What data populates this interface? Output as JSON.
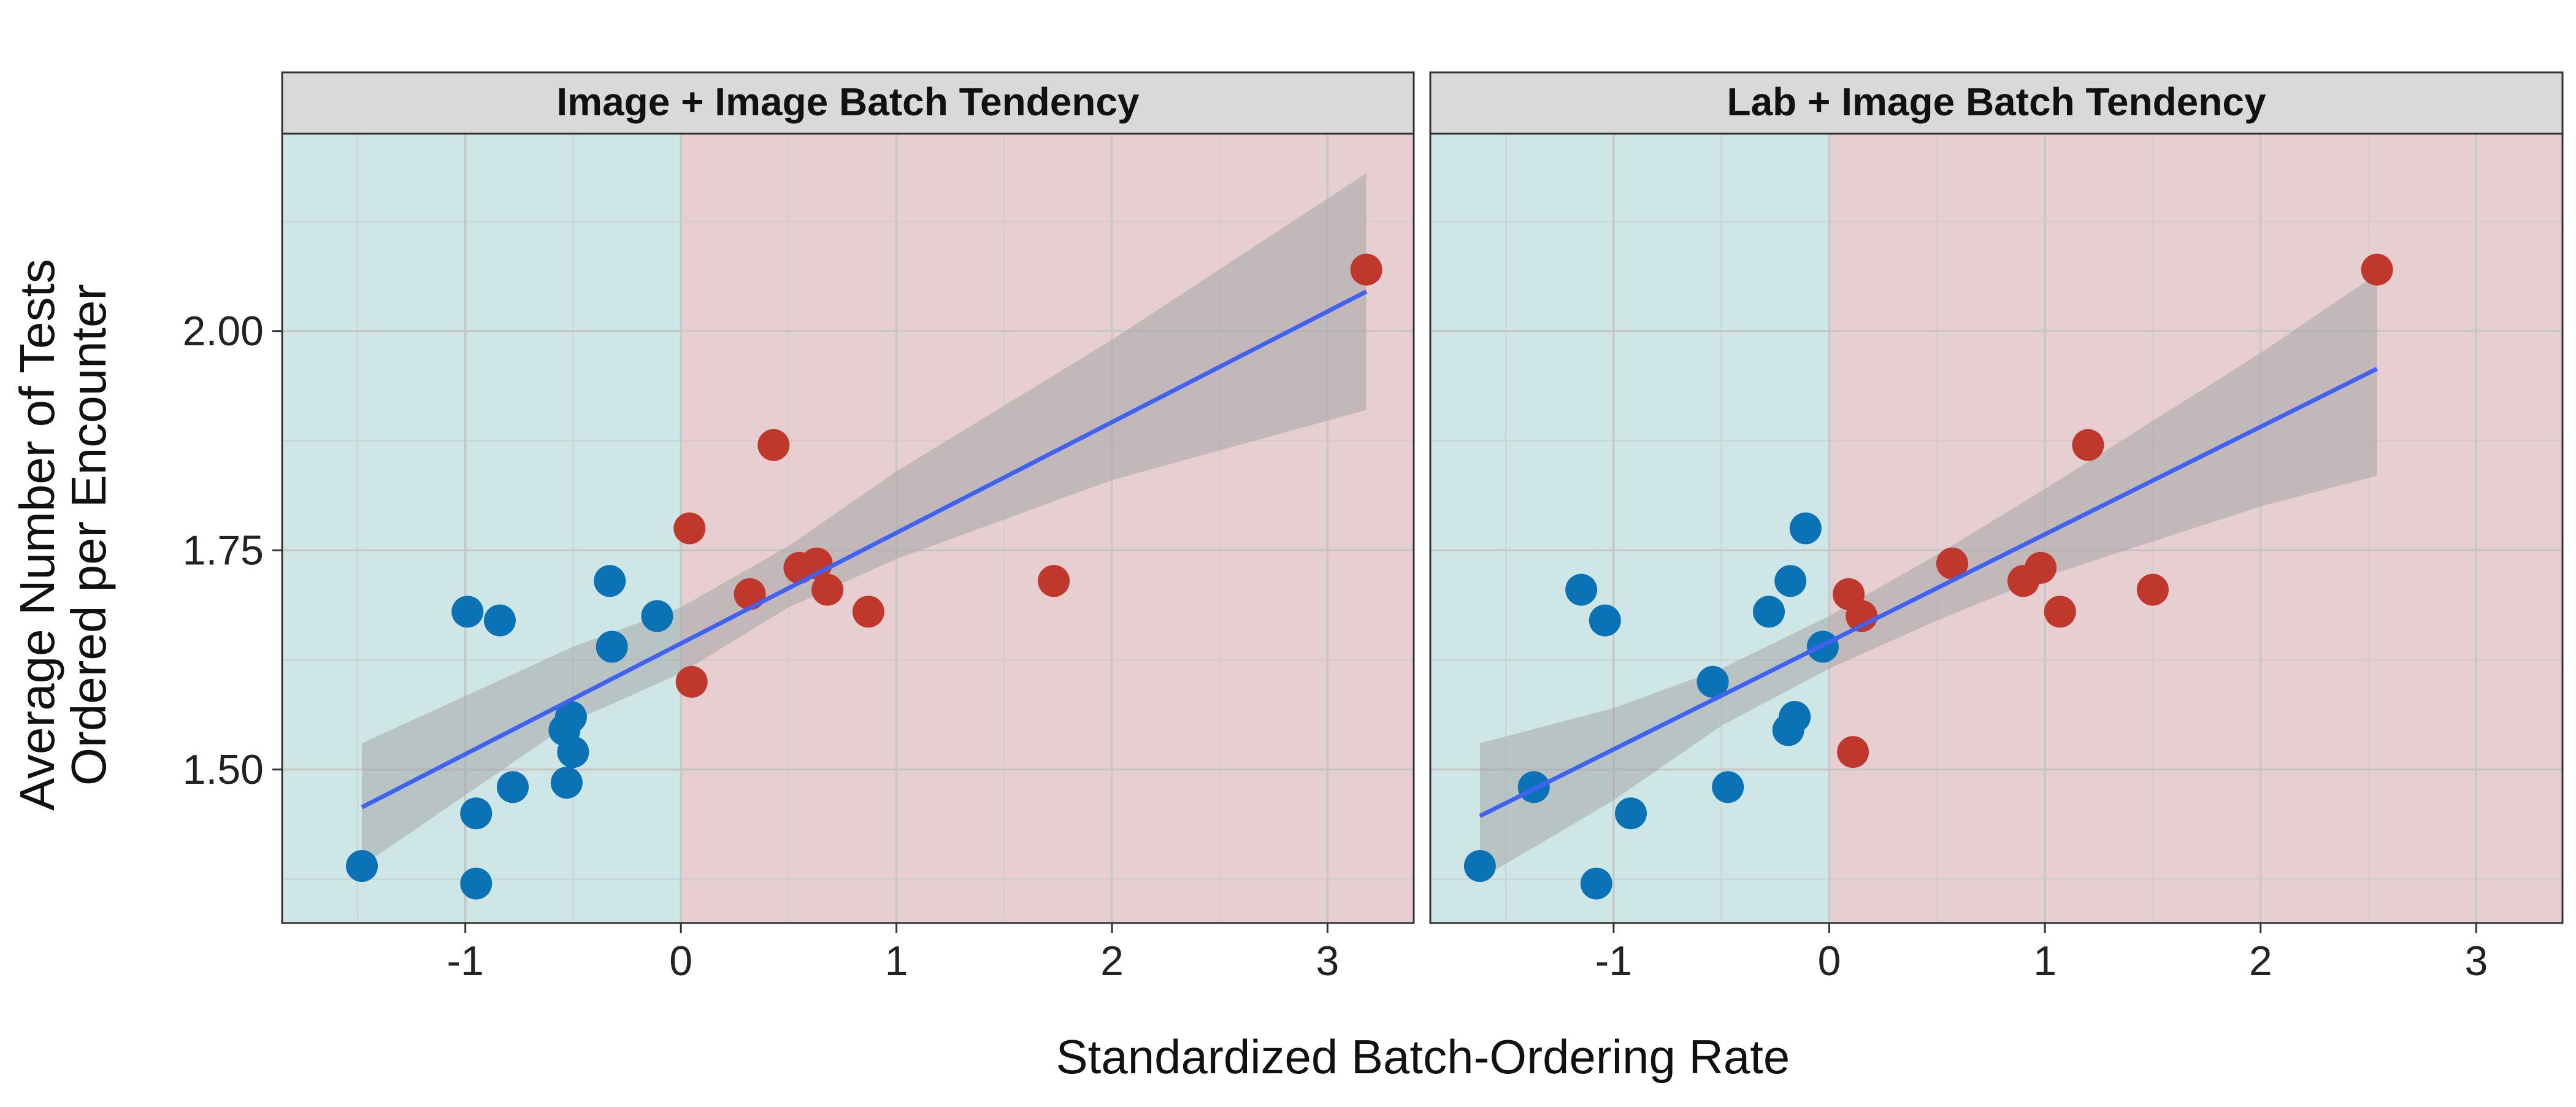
{
  "figure": {
    "xlabel": "Standardized Batch-Ordering Rate",
    "ylabel_lines": [
      "Average Number of Tests",
      "Ordered per Encounter"
    ]
  },
  "colors": {
    "below_zero_bg": "#cfe6e6",
    "above_zero_bg": "#e7cfd1",
    "strip_bg": "#d9d9d9",
    "point_blue": "#0a72b5",
    "point_red": "#c0382b",
    "fit_line": "#3f63f0",
    "ci_band": "#a6a6a6",
    "grid": "#c7c7c7"
  },
  "chart_data": [
    {
      "type": "scatter",
      "title": "Image + Image Batch Tendency",
      "xlabel": "Standardized Batch-Ordering Rate",
      "ylabel": "Average Number of Tests Ordered per Encounter",
      "xlim": [
        -1.85,
        3.4
      ],
      "ylim": [
        1.325,
        2.225
      ],
      "x_ticks": [
        -1,
        0,
        1,
        2,
        3
      ],
      "x_tick_labels": [
        "-1",
        "0",
        "1",
        "2",
        "3"
      ],
      "y_ticks": [
        1.5,
        1.75,
        2.0
      ],
      "y_tick_labels": [
        "1.50",
        "1.75",
        "2.00"
      ],
      "shading_split_x": 0,
      "grid": true,
      "points": [
        {
          "x": -1.48,
          "y": 1.39
        },
        {
          "x": -0.99,
          "y": 1.68
        },
        {
          "x": -0.95,
          "y": 1.45
        },
        {
          "x": -0.95,
          "y": 1.37
        },
        {
          "x": -0.84,
          "y": 1.67
        },
        {
          "x": -0.78,
          "y": 1.48
        },
        {
          "x": -0.54,
          "y": 1.545
        },
        {
          "x": -0.53,
          "y": 1.485
        },
        {
          "x": -0.51,
          "y": 1.56
        },
        {
          "x": -0.5,
          "y": 1.52
        },
        {
          "x": -0.33,
          "y": 1.715
        },
        {
          "x": -0.32,
          "y": 1.64
        },
        {
          "x": -0.11,
          "y": 1.675
        },
        {
          "x": 0.04,
          "y": 1.775
        },
        {
          "x": 0.05,
          "y": 1.6
        },
        {
          "x": 0.32,
          "y": 1.7
        },
        {
          "x": 0.43,
          "y": 1.87
        },
        {
          "x": 0.55,
          "y": 1.73
        },
        {
          "x": 0.63,
          "y": 1.735
        },
        {
          "x": 0.68,
          "y": 1.705
        },
        {
          "x": 0.87,
          "y": 1.68
        },
        {
          "x": 1.73,
          "y": 1.715
        },
        {
          "x": 3.18,
          "y": 2.07
        }
      ],
      "fit": {
        "x0": -1.48,
        "y0": 1.457,
        "x1": 3.18,
        "y1": 2.045
      },
      "ci": [
        {
          "x": -1.48,
          "lo": 1.39,
          "hi": 1.53
        },
        {
          "x": -0.5,
          "lo": 1.555,
          "hi": 1.64
        },
        {
          "x": 0.0,
          "lo": 1.61,
          "hi": 1.685
        },
        {
          "x": 0.5,
          "lo": 1.685,
          "hi": 1.755
        },
        {
          "x": 1.0,
          "lo": 1.74,
          "hi": 1.84
        },
        {
          "x": 2.0,
          "lo": 1.83,
          "hi": 1.99
        },
        {
          "x": 3.18,
          "lo": 1.91,
          "hi": 2.18
        }
      ]
    },
    {
      "type": "scatter",
      "title": "Lab + Image Batch Tendency",
      "xlabel": "Standardized Batch-Ordering Rate",
      "ylabel": "Average Number of Tests Ordered per Encounter",
      "xlim": [
        -1.85,
        3.4
      ],
      "ylim": [
        1.325,
        2.225
      ],
      "x_ticks": [
        -1,
        0,
        1,
        2,
        3
      ],
      "x_tick_labels": [
        "-1",
        "0",
        "1",
        "2",
        "3"
      ],
      "y_ticks": [
        1.5,
        1.75,
        2.0
      ],
      "y_tick_labels": [
        "1.50",
        "1.75",
        "2.00"
      ],
      "shading_split_x": 0,
      "grid": true,
      "points": [
        {
          "x": -1.62,
          "y": 1.39
        },
        {
          "x": -1.37,
          "y": 1.48
        },
        {
          "x": -1.15,
          "y": 1.705
        },
        {
          "x": -1.08,
          "y": 1.37
        },
        {
          "x": -1.04,
          "y": 1.67
        },
        {
          "x": -0.92,
          "y": 1.45
        },
        {
          "x": -0.54,
          "y": 1.6
        },
        {
          "x": -0.47,
          "y": 1.48
        },
        {
          "x": -0.28,
          "y": 1.68
        },
        {
          "x": -0.19,
          "y": 1.545
        },
        {
          "x": -0.18,
          "y": 1.715
        },
        {
          "x": -0.16,
          "y": 1.56
        },
        {
          "x": -0.11,
          "y": 1.775
        },
        {
          "x": -0.03,
          "y": 1.64
        },
        {
          "x": 0.09,
          "y": 1.7
        },
        {
          "x": 0.11,
          "y": 1.52
        },
        {
          "x": 0.15,
          "y": 1.675
        },
        {
          "x": 0.57,
          "y": 1.735
        },
        {
          "x": 0.9,
          "y": 1.715
        },
        {
          "x": 0.98,
          "y": 1.73
        },
        {
          "x": 1.07,
          "y": 1.68
        },
        {
          "x": 1.2,
          "y": 1.87
        },
        {
          "x": 1.5,
          "y": 1.705
        },
        {
          "x": 2.54,
          "y": 2.07
        }
      ],
      "fit": {
        "x0": -1.62,
        "y0": 1.447,
        "x1": 2.54,
        "y1": 1.957
      },
      "ci": [
        {
          "x": -1.62,
          "lo": 1.375,
          "hi": 1.53
        },
        {
          "x": -1.0,
          "lo": 1.465,
          "hi": 1.57
        },
        {
          "x": -0.5,
          "lo": 1.55,
          "hi": 1.615
        },
        {
          "x": 0.0,
          "lo": 1.615,
          "hi": 1.675
        },
        {
          "x": 0.5,
          "lo": 1.67,
          "hi": 1.745
        },
        {
          "x": 1.0,
          "lo": 1.72,
          "hi": 1.82
        },
        {
          "x": 2.0,
          "lo": 1.8,
          "hi": 1.975
        },
        {
          "x": 2.54,
          "lo": 1.835,
          "hi": 2.065
        }
      ]
    }
  ]
}
